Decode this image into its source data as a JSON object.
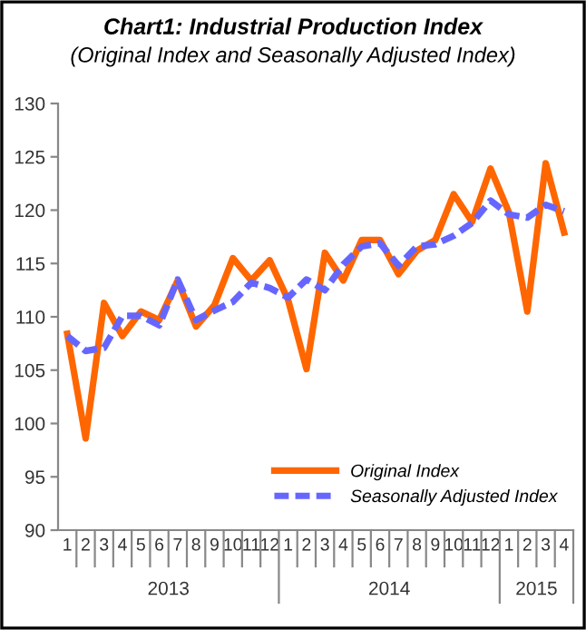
{
  "chart_data": {
    "type": "line",
    "title": "Chart1: Industrial Production Index",
    "subtitle": "(Original Index and Seasonally Adjusted Index)",
    "categories": [
      "1",
      "2",
      "3",
      "4",
      "5",
      "6",
      "7",
      "8",
      "9",
      "10",
      "11",
      "12",
      "1",
      "2",
      "3",
      "4",
      "5",
      "6",
      "7",
      "8",
      "9",
      "10",
      "11",
      "12",
      "1",
      "2",
      "3",
      "4"
    ],
    "annotations": [
      "2013",
      "2014",
      "2015"
    ],
    "series": [
      {
        "name": "Original Index",
        "color": "#ff6600",
        "line_style": "solid",
        "values": [
          108.4,
          98.6,
          111.3,
          108.2,
          110.5,
          109.7,
          113.4,
          109.1,
          111.1,
          115.5,
          113.4,
          115.3,
          111.6,
          105.1,
          116.0,
          113.4,
          117.2,
          117.2,
          114.0,
          116.2,
          117.2,
          121.5,
          118.9,
          123.9,
          119.8,
          110.5,
          124.4,
          117.9
        ]
      },
      {
        "name": "Seasonally Adjusted Index",
        "color": "#6666ff",
        "line_style": "dashed",
        "values": [
          108.2,
          106.8,
          107.1,
          110.1,
          110.1,
          109.2,
          113.5,
          109.7,
          110.6,
          111.4,
          113.2,
          112.7,
          111.8,
          113.5,
          112.5,
          114.9,
          116.6,
          116.9,
          114.8,
          116.6,
          116.8,
          117.6,
          118.8,
          120.9,
          119.6,
          119.3,
          120.5,
          119.9
        ]
      }
    ],
    "ylim": [
      90,
      130
    ],
    "yticks": [
      90,
      95,
      100,
      105,
      110,
      115,
      120,
      125,
      130
    ],
    "grid": false,
    "legend": "bottom right",
    "marker": "none"
  }
}
